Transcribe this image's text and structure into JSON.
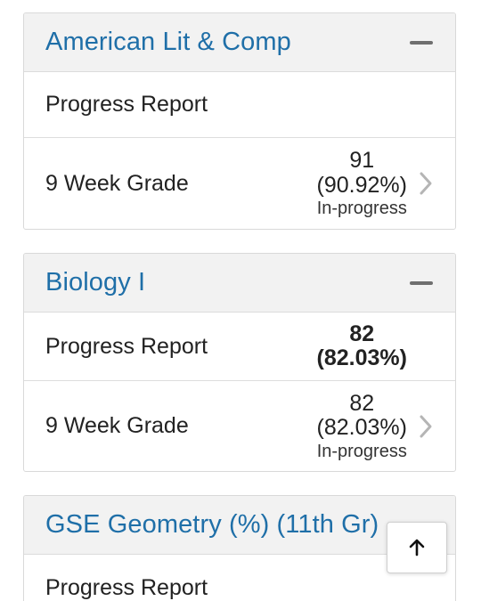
{
  "courses": [
    {
      "title": "American Lit & Comp",
      "rows": [
        {
          "label": "Progress Report"
        },
        {
          "label": "9 Week Grade",
          "score": "91",
          "percent": "(90.92%)",
          "status": "In-progress"
        }
      ]
    },
    {
      "title": "Biology I",
      "rows": [
        {
          "label": "Progress Report",
          "score": "82",
          "percent": "(82.03%)"
        },
        {
          "label": "9 Week Grade",
          "score": "82",
          "percent": "(82.03%)",
          "status": "In-progress"
        }
      ]
    },
    {
      "title": "GSE Geometry (%) (11th Gr)",
      "rows": [
        {
          "label": "Progress Report"
        }
      ]
    }
  ],
  "icons": {
    "collapse": "minus-icon",
    "expand_row": "chevron-right-icon",
    "scroll_top": "arrow-up-icon"
  },
  "colors": {
    "course_title": "#1f6fa8",
    "header_bg": "#f2f2f2"
  }
}
